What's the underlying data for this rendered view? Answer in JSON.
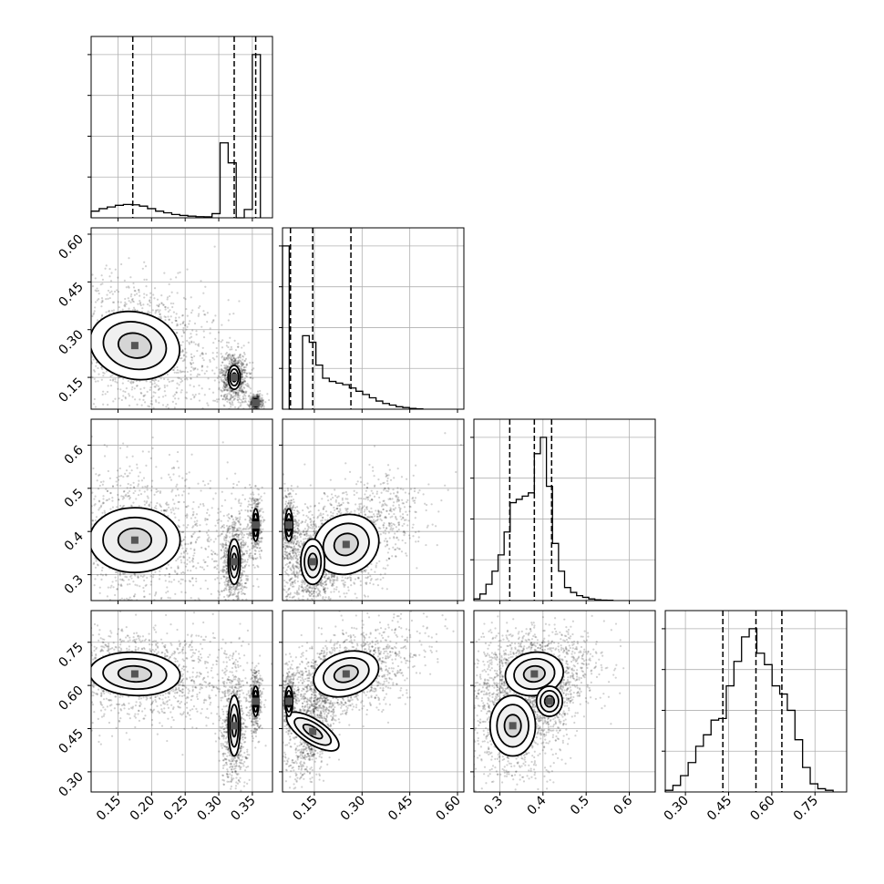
{
  "chart_data": {
    "type": "corner",
    "style": {
      "grid": true,
      "hist_color": "#000000",
      "contour_color": "#000000",
      "quantile_line": "dashed",
      "scatter_color": "#000000"
    },
    "parameters": [
      {
        "index": 0,
        "range": [
          0.11,
          0.38
        ],
        "x_ticks": [
          0.15,
          0.2,
          0.25,
          0.3,
          0.35
        ],
        "x_tick_labels": [
          "0.15",
          "0.20",
          "0.25",
          "0.30",
          "0.35"
        ],
        "quantiles": [
          0.172,
          0.323,
          0.355
        ],
        "hist_bins": [
          0.11,
          0.122,
          0.134,
          0.146,
          0.158,
          0.17,
          0.182,
          0.194,
          0.206,
          0.218,
          0.23,
          0.242,
          0.254,
          0.266,
          0.278,
          0.29,
          0.302,
          0.314,
          0.326,
          0.338,
          0.35,
          0.362
        ],
        "hist_counts": [
          0.04,
          0.055,
          0.065,
          0.075,
          0.08,
          0.078,
          0.07,
          0.055,
          0.04,
          0.03,
          0.02,
          0.014,
          0.01,
          0.007,
          0.006,
          0.025,
          0.45,
          0.33,
          0.0,
          0.05,
          0.98
        ]
      },
      {
        "index": 1,
        "range": [
          0.05,
          0.62
        ],
        "y_ticks": [
          0.15,
          0.3,
          0.45,
          0.6
        ],
        "y_tick_labels": [
          "0.15",
          "0.30",
          "0.45",
          "0.60"
        ],
        "x_ticks": [
          0.15,
          0.3,
          0.45,
          0.6
        ],
        "x_tick_labels": [
          "0.15",
          "0.30",
          "0.45",
          "0.60"
        ],
        "quantiles": [
          0.075,
          0.145,
          0.265
        ],
        "hist_bins": [
          0.05,
          0.071,
          0.092,
          0.113,
          0.134,
          0.155,
          0.176,
          0.197,
          0.218,
          0.239,
          0.26,
          0.281,
          0.302,
          0.323,
          0.344,
          0.365,
          0.386,
          0.407,
          0.428,
          0.449,
          0.47,
          0.491
        ],
        "hist_counts": [
          1.0,
          0.0,
          0.0,
          0.45,
          0.41,
          0.27,
          0.19,
          0.17,
          0.16,
          0.15,
          0.13,
          0.11,
          0.09,
          0.07,
          0.05,
          0.035,
          0.025,
          0.015,
          0.01,
          0.005,
          0.002
        ]
      },
      {
        "index": 2,
        "range": [
          0.24,
          0.66
        ],
        "y_ticks": [
          0.3,
          0.4,
          0.5,
          0.6
        ],
        "y_tick_labels": [
          "0.3",
          "0.4",
          "0.5",
          "0.6"
        ],
        "x_ticks": [
          0.3,
          0.4,
          0.5,
          0.6
        ],
        "x_tick_labels": [
          "0.3",
          "0.4",
          "0.5",
          "0.6"
        ],
        "quantiles": [
          0.323,
          0.38,
          0.42
        ],
        "hist_bins": [
          0.24,
          0.254,
          0.268,
          0.282,
          0.296,
          0.31,
          0.324,
          0.338,
          0.352,
          0.366,
          0.38,
          0.394,
          0.408,
          0.422,
          0.436,
          0.45,
          0.464,
          0.478,
          0.492,
          0.506,
          0.52,
          0.534,
          0.548,
          0.562
        ],
        "hist_counts": [
          0.01,
          0.04,
          0.1,
          0.18,
          0.28,
          0.42,
          0.6,
          0.62,
          0.64,
          0.66,
          0.9,
          1.0,
          0.7,
          0.35,
          0.18,
          0.08,
          0.05,
          0.03,
          0.02,
          0.01,
          0.005,
          0.003,
          0.002
        ]
      },
      {
        "index": 3,
        "range": [
          0.23,
          0.86
        ],
        "y_ticks": [
          0.3,
          0.45,
          0.6,
          0.75
        ],
        "y_tick_labels": [
          "0.30",
          "0.45",
          "0.60",
          "0.75"
        ],
        "x_ticks": [
          0.3,
          0.45,
          0.6,
          0.75
        ],
        "x_tick_labels": [
          "0.30",
          "0.45",
          "0.60",
          "0.75"
        ],
        "quantiles": [
          0.43,
          0.545,
          0.635
        ],
        "hist_bins": [
          0.23,
          0.2565,
          0.283,
          0.3095,
          0.336,
          0.3625,
          0.389,
          0.4155,
          0.442,
          0.4685,
          0.495,
          0.5215,
          0.548,
          0.5745,
          0.601,
          0.6275,
          0.654,
          0.6805,
          0.707,
          0.7335,
          0.76,
          0.7865,
          0.813
        ],
        "hist_counts": [
          0.01,
          0.04,
          0.1,
          0.18,
          0.28,
          0.35,
          0.44,
          0.45,
          0.65,
          0.8,
          0.95,
          1.0,
          0.85,
          0.78,
          0.65,
          0.6,
          0.5,
          0.32,
          0.15,
          0.05,
          0.02,
          0.01
        ]
      }
    ],
    "pairs": [
      {
        "x_param": 0,
        "y_param": 1,
        "modes": [
          {
            "cx": 0.175,
            "cy": 0.25,
            "sx": 0.045,
            "sy": 0.07,
            "rho": -0.3,
            "w": 0.55
          },
          {
            "cx": 0.323,
            "cy": 0.15,
            "sx": 0.006,
            "sy": 0.025,
            "rho": 0.0,
            "w": 0.3
          },
          {
            "cx": 0.355,
            "cy": 0.07,
            "sx": 0.003,
            "sy": 0.008,
            "rho": 0.0,
            "w": 0.15
          }
        ]
      },
      {
        "x_param": 0,
        "y_param": 2,
        "modes": [
          {
            "cx": 0.175,
            "cy": 0.38,
            "sx": 0.045,
            "sy": 0.05,
            "rho": 0.0,
            "w": 0.55
          },
          {
            "cx": 0.323,
            "cy": 0.33,
            "sx": 0.006,
            "sy": 0.035,
            "rho": 0.0,
            "w": 0.3
          },
          {
            "cx": 0.355,
            "cy": 0.415,
            "sx": 0.003,
            "sy": 0.025,
            "rho": 0.0,
            "w": 0.15
          }
        ]
      },
      {
        "x_param": 0,
        "y_param": 3,
        "modes": [
          {
            "cx": 0.175,
            "cy": 0.64,
            "sx": 0.045,
            "sy": 0.05,
            "rho": -0.1,
            "w": 0.55
          },
          {
            "cx": 0.323,
            "cy": 0.46,
            "sx": 0.006,
            "sy": 0.07,
            "rho": 0.0,
            "w": 0.3
          },
          {
            "cx": 0.355,
            "cy": 0.545,
            "sx": 0.003,
            "sy": 0.035,
            "rho": 0.0,
            "w": 0.15
          }
        ]
      },
      {
        "x_param": 1,
        "y_param": 2,
        "modes": [
          {
            "cx": 0.25,
            "cy": 0.37,
            "sx": 0.07,
            "sy": 0.045,
            "rho": 0.55,
            "w": 0.55
          },
          {
            "cx": 0.145,
            "cy": 0.33,
            "sx": 0.025,
            "sy": 0.035,
            "rho": 0.0,
            "w": 0.3
          },
          {
            "cx": 0.07,
            "cy": 0.415,
            "sx": 0.008,
            "sy": 0.025,
            "rho": 0.0,
            "w": 0.15
          }
        ]
      },
      {
        "x_param": 1,
        "y_param": 3,
        "modes": [
          {
            "cx": 0.25,
            "cy": 0.64,
            "sx": 0.07,
            "sy": 0.05,
            "rho": 0.5,
            "w": 0.55
          },
          {
            "cx": 0.145,
            "cy": 0.44,
            "sx": 0.025,
            "sy": 0.07,
            "rho": 0.6,
            "w": 0.3
          },
          {
            "cx": 0.07,
            "cy": 0.545,
            "sx": 0.008,
            "sy": 0.035,
            "rho": 0.0,
            "w": 0.15
          }
        ]
      },
      {
        "x_param": 2,
        "y_param": 3,
        "modes": [
          {
            "cx": 0.38,
            "cy": 0.64,
            "sx": 0.045,
            "sy": 0.05,
            "rho": 0.2,
            "w": 0.55
          },
          {
            "cx": 0.33,
            "cy": 0.46,
            "sx": 0.035,
            "sy": 0.07,
            "rho": 0.0,
            "w": 0.3
          },
          {
            "cx": 0.415,
            "cy": 0.545,
            "sx": 0.02,
            "sy": 0.035,
            "rho": 0.0,
            "w": 0.15
          }
        ]
      }
    ]
  }
}
